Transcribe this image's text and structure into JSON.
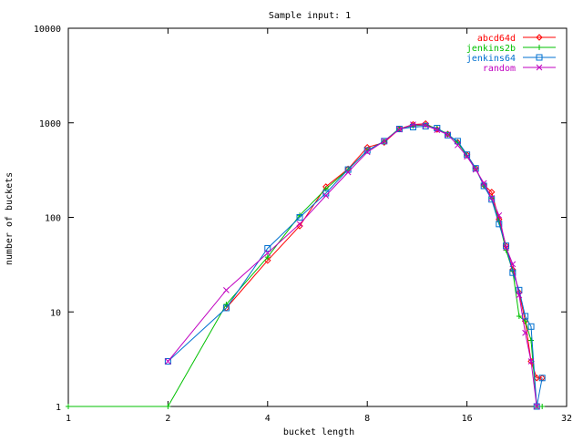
{
  "chart_data": {
    "type": "line",
    "title": "Sample input: 1",
    "xlabel": "bucket length",
    "ylabel": "number of buckets",
    "x_scale": "log2",
    "y_scale": "log10",
    "xlim": [
      1,
      32
    ],
    "ylim": [
      1,
      10000
    ],
    "x_ticks": [
      1,
      2,
      4,
      8,
      16,
      32
    ],
    "x_tick_labels": [
      "1",
      "2",
      "4",
      "8",
      "16",
      "32"
    ],
    "y_ticks": [
      1,
      10,
      100,
      1000,
      10000
    ],
    "y_tick_labels": [
      "1",
      "10",
      "100",
      "1000",
      "10000"
    ],
    "grid": false,
    "legend_position": "top-right",
    "series": [
      {
        "name": "abcd64d",
        "color": "#ff0000",
        "marker": "diamond",
        "points": [
          [
            3,
            11
          ],
          [
            4,
            35
          ],
          [
            5,
            81
          ],
          [
            6,
            211
          ],
          [
            7,
            325
          ],
          [
            8,
            550
          ],
          [
            9,
            620
          ],
          [
            10,
            860
          ],
          [
            11,
            960
          ],
          [
            12,
            980
          ],
          [
            13,
            850
          ],
          [
            14,
            760
          ],
          [
            15,
            620
          ],
          [
            16,
            460
          ],
          [
            17,
            330
          ],
          [
            18,
            220
          ],
          [
            19,
            185
          ],
          [
            20,
            95
          ],
          [
            21,
            50
          ],
          [
            22,
            28
          ],
          [
            23,
            16
          ],
          [
            24,
            8
          ],
          [
            25,
            3
          ],
          [
            26,
            2
          ],
          [
            27,
            2
          ]
        ]
      },
      {
        "name": "jenkins2b",
        "color": "#00c000",
        "marker": "plus",
        "points": [
          [
            1,
            1
          ],
          [
            2,
            1
          ],
          [
            3,
            12
          ],
          [
            4,
            38
          ],
          [
            5,
            105
          ],
          [
            6,
            200
          ],
          [
            7,
            320
          ],
          [
            8,
            510
          ],
          [
            9,
            640
          ],
          [
            10,
            870
          ],
          [
            11,
            930
          ],
          [
            12,
            950
          ],
          [
            13,
            870
          ],
          [
            14,
            760
          ],
          [
            15,
            620
          ],
          [
            16,
            450
          ],
          [
            17,
            330
          ],
          [
            18,
            215
          ],
          [
            19,
            160
          ],
          [
            20,
            90
          ],
          [
            21,
            45
          ],
          [
            22,
            27
          ],
          [
            23,
            9
          ],
          [
            24,
            8
          ],
          [
            25,
            5
          ],
          [
            26,
            1
          ],
          [
            27,
            1
          ]
        ]
      },
      {
        "name": "jenkins64",
        "color": "#0070d0",
        "marker": "square",
        "points": [
          [
            2,
            3
          ],
          [
            3,
            11
          ],
          [
            4,
            47
          ],
          [
            5,
            100
          ],
          [
            6,
            180
          ],
          [
            7,
            320
          ],
          [
            8,
            510
          ],
          [
            9,
            640
          ],
          [
            10,
            860
          ],
          [
            11,
            900
          ],
          [
            12,
            920
          ],
          [
            13,
            880
          ],
          [
            14,
            740
          ],
          [
            15,
            640
          ],
          [
            16,
            460
          ],
          [
            17,
            330
          ],
          [
            18,
            215
          ],
          [
            19,
            155
          ],
          [
            20,
            85
          ],
          [
            21,
            50
          ],
          [
            22,
            26
          ],
          [
            23,
            17
          ],
          [
            24,
            9
          ],
          [
            25,
            7
          ],
          [
            26,
            1
          ],
          [
            27,
            2
          ]
        ]
      },
      {
        "name": "random",
        "color": "#c000c0",
        "marker": "cross",
        "points": [
          [
            2,
            3
          ],
          [
            3,
            17
          ],
          [
            4,
            42
          ],
          [
            5,
            85
          ],
          [
            6,
            170
          ],
          [
            7,
            300
          ],
          [
            8,
            490
          ],
          [
            9,
            640
          ],
          [
            10,
            850
          ],
          [
            11,
            960
          ],
          [
            12,
            940
          ],
          [
            13,
            840
          ],
          [
            14,
            750
          ],
          [
            15,
            580
          ],
          [
            16,
            440
          ],
          [
            17,
            320
          ],
          [
            18,
            230
          ],
          [
            19,
            160
          ],
          [
            20,
            105
          ],
          [
            21,
            48
          ],
          [
            22,
            32
          ],
          [
            23,
            15
          ],
          [
            24,
            6
          ],
          [
            25,
            3
          ],
          [
            26,
            1
          ]
        ]
      }
    ]
  }
}
